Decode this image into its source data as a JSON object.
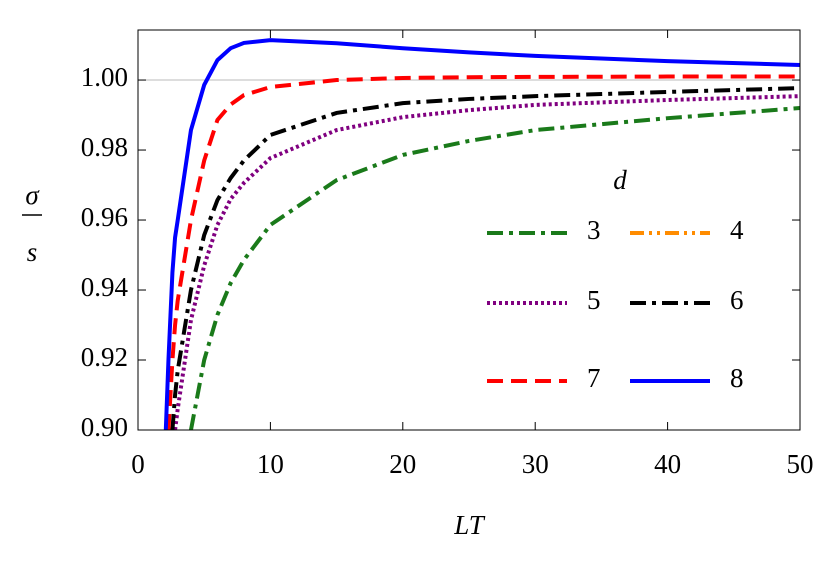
{
  "chart_data": {
    "type": "line",
    "x_label": "LT",
    "y_label_numerator": "σ",
    "y_label_denominator": "s",
    "legend_title": "d",
    "x": [
      2.1,
      2.3,
      2.6,
      2.8,
      3,
      4,
      5,
      6,
      7,
      8,
      10,
      15,
      20,
      25,
      30,
      40,
      50
    ],
    "series": [
      {
        "name": "3",
        "color": "#1a7a1a",
        "style": "dashdot",
        "values": [
          null,
          null,
          null,
          null,
          null,
          0.9,
          0.92,
          0.9329,
          0.942,
          0.9486,
          0.9586,
          0.9714,
          0.9786,
          0.9826,
          0.9857,
          0.9891,
          0.992
        ]
      },
      {
        "name": "4",
        "color": "#ff8c00",
        "style": "dashdotdot",
        "values": [
          null,
          null,
          null,
          null,
          null,
          null,
          null,
          null,
          null,
          null,
          null,
          null,
          null,
          null,
          null,
          null,
          null
        ]
      },
      {
        "name": "5",
        "color": "#800080",
        "style": "dotted",
        "values": [
          null,
          null,
          null,
          0.9,
          0.906,
          0.9314,
          0.947,
          0.9586,
          0.966,
          0.9706,
          0.9777,
          0.9857,
          0.9894,
          0.9914,
          0.9929,
          0.9943,
          0.9954
        ]
      },
      {
        "name": "6",
        "color": "#000000",
        "style": "dashdot",
        "values": [
          null,
          null,
          0.9,
          0.91,
          0.917,
          0.94,
          0.9557,
          0.9657,
          0.972,
          0.977,
          0.9843,
          0.9906,
          0.9934,
          0.9946,
          0.9954,
          0.9966,
          0.9977
        ]
      },
      {
        "name": "7",
        "color": "#ff0000",
        "style": "dashed",
        "values": [
          null,
          0.9,
          0.92,
          0.93,
          0.937,
          0.96,
          0.977,
          0.9886,
          0.993,
          0.9957,
          0.998,
          1.0,
          1.0006,
          1.0008,
          1.0009,
          1.001,
          1.001
        ]
      },
      {
        "name": "8",
        "color": "#0000ff",
        "style": "solid",
        "values": [
          0.9,
          0.92,
          0.945,
          0.955,
          0.96,
          0.9857,
          0.9986,
          1.0057,
          1.0091,
          1.0106,
          1.0114,
          1.0105,
          1.0091,
          1.0079,
          1.0069,
          1.0054,
          1.0043
        ]
      }
    ],
    "reference_line": 1.0,
    "xlim": [
      0,
      50
    ],
    "ylim": [
      0.9,
      1.0143
    ],
    "xticks": [
      0,
      10,
      20,
      30,
      40,
      50
    ],
    "yticks": [
      {
        "value": 0.9,
        "label": "0.90"
      },
      {
        "value": 0.92,
        "label": "0.92"
      },
      {
        "value": 0.94,
        "label": "0.94"
      },
      {
        "value": 0.96,
        "label": "0.96"
      },
      {
        "value": 0.98,
        "label": "0.98"
      },
      {
        "value": 1.0,
        "label": "1.00"
      }
    ]
  }
}
